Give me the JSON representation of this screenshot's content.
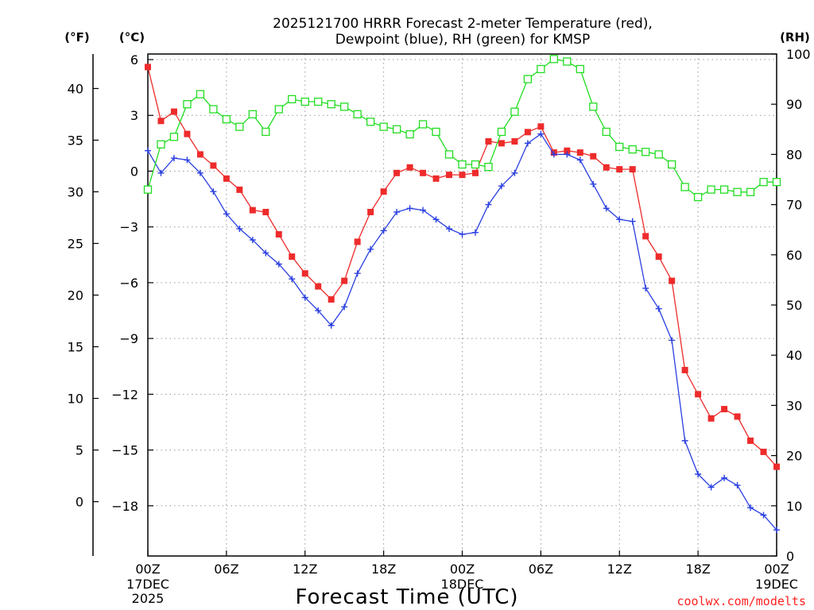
{
  "chart_data": {
    "type": "line",
    "title": "2025121700 HRRR Forecast 2-meter Temperature (red),",
    "subtitle": "Dewpoint (blue), RH (green) for KMSP",
    "xlabel": "Forecast Time (UTC)",
    "unit_labels": {
      "fahrenheit": "(°F)",
      "celsius": "(°C)",
      "rh": "(RH)"
    },
    "credit": "coolwx.com/modelts",
    "x_ticks": [
      {
        "hour": 0,
        "label": "00Z",
        "sub1": "17DEC",
        "sub2": "2025"
      },
      {
        "hour": 6,
        "label": "06Z",
        "sub1": "",
        "sub2": ""
      },
      {
        "hour": 12,
        "label": "12Z",
        "sub1": "",
        "sub2": ""
      },
      {
        "hour": 18,
        "label": "18Z",
        "sub1": "",
        "sub2": ""
      },
      {
        "hour": 24,
        "label": "00Z",
        "sub1": "18DEC",
        "sub2": ""
      },
      {
        "hour": 30,
        "label": "06Z",
        "sub1": "",
        "sub2": ""
      },
      {
        "hour": 36,
        "label": "12Z",
        "sub1": "",
        "sub2": ""
      },
      {
        "hour": 42,
        "label": "18Z",
        "sub1": "",
        "sub2": ""
      },
      {
        "hour": 48,
        "label": "00Z",
        "sub1": "19DEC",
        "sub2": ""
      }
    ],
    "xlim": [
      0,
      48
    ],
    "ylim_celsius": [
      -20.7,
      6.3
    ],
    "yticks_celsius": [
      6,
      3,
      0,
      -3,
      -6,
      -9,
      -12,
      -15,
      -18
    ],
    "yticks_fahrenheit": [
      40,
      35,
      30,
      25,
      20,
      15,
      10,
      5,
      0
    ],
    "ylim_rh": [
      0,
      100
    ],
    "yticks_rh": [
      100,
      90,
      80,
      70,
      60,
      50,
      40,
      30,
      20,
      10,
      0
    ],
    "grid": true,
    "series": [
      {
        "name": "Temperature",
        "color": "#ee2b2b",
        "marker": "filled-square",
        "axis": "celsius",
        "x": [
          0,
          1,
          2,
          3,
          4,
          5,
          6,
          7,
          8,
          9,
          10,
          11,
          12,
          13,
          14,
          15,
          16,
          17,
          18,
          19,
          20,
          21,
          22,
          23,
          24,
          25,
          26,
          27,
          28,
          29,
          30,
          31,
          32,
          33,
          34,
          35,
          36,
          37,
          38,
          39,
          40,
          41,
          42,
          43,
          44,
          45,
          46,
          47,
          48
        ],
        "values": [
          5.6,
          2.7,
          3.2,
          2.0,
          0.9,
          0.3,
          -0.4,
          -1.0,
          -2.1,
          -2.2,
          -3.4,
          -4.6,
          -5.5,
          -6.2,
          -6.9,
          -5.9,
          -3.8,
          -2.2,
          -1.1,
          -0.1,
          0.2,
          -0.1,
          -0.4,
          -0.2,
          -0.2,
          -0.1,
          1.6,
          1.5,
          1.6,
          2.1,
          2.4,
          1.0,
          1.1,
          1.0,
          0.8,
          0.2,
          0.1,
          0.1,
          -3.5,
          -4.6,
          -5.9,
          -10.7,
          -12.0,
          -13.3,
          -12.8,
          -13.2,
          -14.5,
          -15.1,
          -15.9
        ]
      },
      {
        "name": "Dewpoint",
        "color": "#2a3fe0",
        "marker": "plus",
        "axis": "celsius",
        "x": [
          0,
          1,
          2,
          3,
          4,
          5,
          6,
          7,
          8,
          9,
          10,
          11,
          12,
          13,
          14,
          15,
          16,
          17,
          18,
          19,
          20,
          21,
          22,
          23,
          24,
          25,
          26,
          27,
          28,
          29,
          30,
          31,
          32,
          33,
          34,
          35,
          36,
          37,
          38,
          39,
          40,
          41,
          42,
          43,
          44,
          45,
          46,
          47,
          48
        ],
        "values": [
          1.1,
          -0.1,
          0.7,
          0.6,
          -0.1,
          -1.1,
          -2.3,
          -3.1,
          -3.7,
          -4.4,
          -5.0,
          -5.8,
          -6.8,
          -7.5,
          -8.3,
          -7.3,
          -5.5,
          -4.2,
          -3.2,
          -2.2,
          -2.0,
          -2.1,
          -2.6,
          -3.1,
          -3.4,
          -3.3,
          -1.8,
          -0.8,
          -0.1,
          1.5,
          2.0,
          0.9,
          0.9,
          0.6,
          -0.7,
          -2.0,
          -2.6,
          -2.7,
          -6.3,
          -7.4,
          -9.1,
          -14.5,
          -16.3,
          -17.0,
          -16.5,
          -16.9,
          -18.1,
          -18.5,
          -19.3
        ]
      },
      {
        "name": "RH",
        "color": "#22dd22",
        "marker": "open-square",
        "axis": "rh",
        "x": [
          0,
          1,
          2,
          3,
          4,
          5,
          6,
          7,
          8,
          9,
          10,
          11,
          12,
          13,
          14,
          15,
          16,
          17,
          18,
          19,
          20,
          21,
          22,
          23,
          24,
          25,
          26,
          27,
          28,
          29,
          30,
          31,
          32,
          33,
          34,
          35,
          36,
          37,
          38,
          39,
          40,
          41,
          42,
          43,
          44,
          45,
          46,
          47,
          48
        ],
        "values": [
          73,
          82,
          83.5,
          90,
          92,
          89,
          87,
          85.5,
          88,
          84.5,
          89,
          91,
          90.5,
          90.5,
          90,
          89.5,
          88,
          86.5,
          85.5,
          85,
          84,
          86,
          84.5,
          80,
          78,
          78,
          77.5,
          84.5,
          88.5,
          95,
          97,
          99,
          98.5,
          97,
          89.5,
          84.5,
          81.5,
          81,
          80.5,
          80,
          78,
          73.5,
          71.5,
          73,
          73,
          72.5,
          72.5,
          74.5,
          74.5
        ]
      }
    ]
  }
}
